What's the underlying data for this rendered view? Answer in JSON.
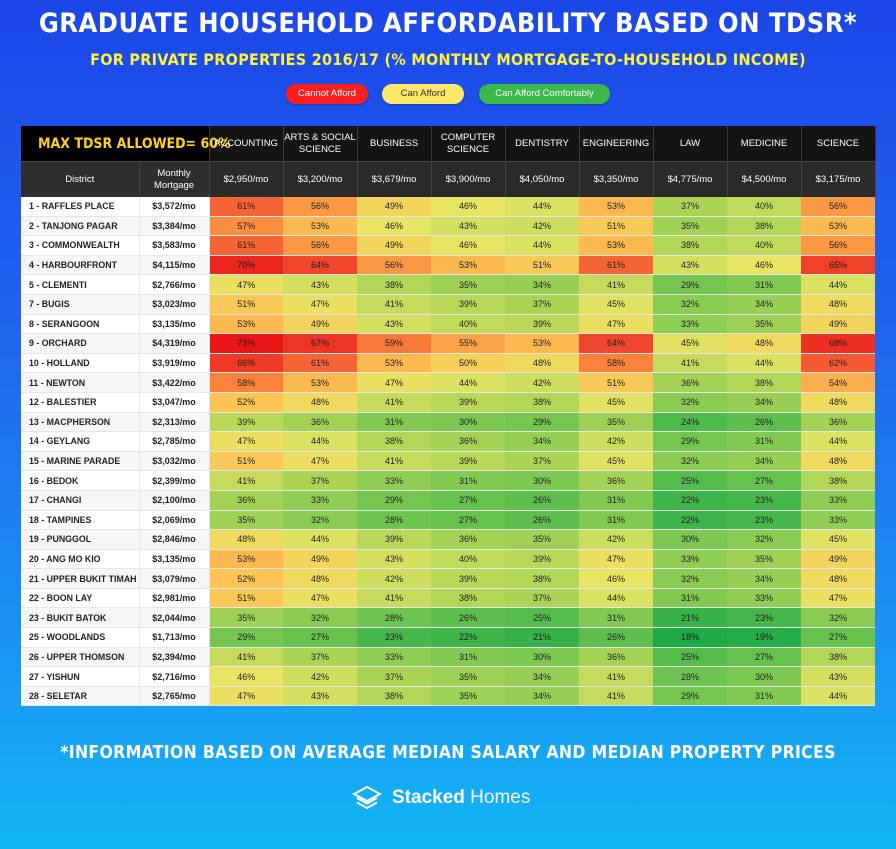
{
  "header": {
    "title": "GRADUATE HOUSEHOLD AFFORDABILITY BASED ON TDSR*",
    "subtitle": "FOR PRIVATE PROPERTIES 2016/17 (% MONTHLY MORTGAGE-TO-HOUSEHOLD INCOME)"
  },
  "legend": {
    "cannot": "Cannot Afford",
    "can": "Can Afford",
    "comfortable": "Can Afford Comfortably",
    "colors": {
      "cannot": "#ff1e1e",
      "can": "#fde86a",
      "comfortable": "#3cb84a"
    }
  },
  "table": {
    "max_tdsr": "MAX TDSR ALLOWED= 60%",
    "district_label": "District",
    "mortgage_label_line1": "Monthly",
    "mortgage_label_line2": "Mortgage"
  },
  "footer": {
    "note": "*INFORMATION BASED ON AVERAGE MEDIAN SALARY AND MEDIAN PROPERTY PRICES",
    "brand_bold": "Stacked",
    "brand_light": " Homes"
  },
  "chart_data": {
    "type": "heatmap",
    "title": "GRADUATE HOUSEHOLD AFFORDABILITY BASED ON TDSR*",
    "subtitle": "FOR PRIVATE PROPERTIES 2016/17 (% MONTHLY MORTGAGE-TO-HOUSEHOLD INCOME)",
    "columns": [
      {
        "name": [
          "ACCOUNTING"
        ],
        "income": "$2,950/mo"
      },
      {
        "name": [
          "ARTS & SOCIAL",
          "SCIENCE"
        ],
        "income": "$3,200/mo"
      },
      {
        "name": [
          "BUSINESS"
        ],
        "income": "$3,679/mo"
      },
      {
        "name": [
          "COMPUTER",
          "SCIENCE"
        ],
        "income": "$3,900/mo"
      },
      {
        "name": [
          "DENTISTRY"
        ],
        "income": "$4,050/mo"
      },
      {
        "name": [
          "ENGINEERING"
        ],
        "income": "$3,350/mo"
      },
      {
        "name": [
          "LAW"
        ],
        "income": "$4,775/mo"
      },
      {
        "name": [
          "MEDICINE"
        ],
        "income": "$4,500/mo"
      },
      {
        "name": [
          "SCIENCE"
        ],
        "income": "$3,175/mo"
      }
    ],
    "rows": [
      {
        "district": "1 - RAFFLES PLACE",
        "mortgage": "$3,572/mo",
        "values": [
          61,
          56,
          49,
          46,
          44,
          53,
          37,
          40,
          56
        ]
      },
      {
        "district": "2 - TANJONG PAGAR",
        "mortgage": "$3,384/mo",
        "values": [
          57,
          53,
          46,
          43,
          42,
          51,
          35,
          38,
          53
        ]
      },
      {
        "district": "3 - COMMONWEALTH",
        "mortgage": "$3,583/mo",
        "values": [
          61,
          56,
          49,
          46,
          44,
          53,
          38,
          40,
          56
        ]
      },
      {
        "district": "4 - HARBOURFRONT",
        "mortgage": "$4,115/mo",
        "values": [
          70,
          64,
          56,
          53,
          51,
          61,
          43,
          46,
          65
        ]
      },
      {
        "district": "5 - CLEMENTI",
        "mortgage": "$2,766/mo",
        "values": [
          47,
          43,
          38,
          35,
          34,
          41,
          29,
          31,
          44
        ]
      },
      {
        "district": "7 - BUGIS",
        "mortgage": "$3,023/mo",
        "values": [
          51,
          47,
          41,
          39,
          37,
          45,
          32,
          34,
          48
        ]
      },
      {
        "district": "8 - SERANGOON",
        "mortgage": "$3,135/mo",
        "values": [
          53,
          49,
          43,
          40,
          39,
          47,
          33,
          35,
          49
        ]
      },
      {
        "district": "9 - ORCHARD",
        "mortgage": "$4,319/mo",
        "values": [
          73,
          67,
          59,
          55,
          53,
          64,
          45,
          48,
          68
        ]
      },
      {
        "district": "10 - HOLLAND",
        "mortgage": "$3,919/mo",
        "values": [
          66,
          61,
          53,
          50,
          48,
          58,
          41,
          44,
          62
        ]
      },
      {
        "district": "11 - NEWTON",
        "mortgage": "$3,422/mo",
        "values": [
          58,
          53,
          47,
          44,
          42,
          51,
          36,
          38,
          54
        ]
      },
      {
        "district": "12 - BALESTIER",
        "mortgage": "$3,047/mo",
        "values": [
          52,
          48,
          41,
          39,
          38,
          45,
          32,
          34,
          48
        ]
      },
      {
        "district": "13 - MACPHERSON",
        "mortgage": "$2,313/mo",
        "values": [
          39,
          36,
          31,
          30,
          29,
          35,
          24,
          26,
          36
        ]
      },
      {
        "district": "14 - GEYLANG",
        "mortgage": "$2,785/mo",
        "values": [
          47,
          44,
          38,
          36,
          34,
          42,
          29,
          31,
          44
        ]
      },
      {
        "district": "15 - MARINE PARADE",
        "mortgage": "$3,032/mo",
        "values": [
          51,
          47,
          41,
          39,
          37,
          45,
          32,
          34,
          48
        ]
      },
      {
        "district": "16 - BEDOK",
        "mortgage": "$2,399/mo",
        "values": [
          41,
          37,
          33,
          31,
          30,
          36,
          25,
          27,
          38
        ]
      },
      {
        "district": "17 - CHANGI",
        "mortgage": "$2,100/mo",
        "values": [
          36,
          33,
          29,
          27,
          26,
          31,
          22,
          23,
          33
        ]
      },
      {
        "district": "18 - TAMPINES",
        "mortgage": "$2,069/mo",
        "values": [
          35,
          32,
          28,
          27,
          26,
          31,
          22,
          23,
          33
        ]
      },
      {
        "district": "19 - PUNGGOL",
        "mortgage": "$2,846/mo",
        "values": [
          48,
          44,
          39,
          36,
          35,
          42,
          30,
          32,
          45
        ]
      },
      {
        "district": "20 - ANG MO KIO",
        "mortgage": "$3,135/mo",
        "values": [
          53,
          49,
          43,
          40,
          39,
          47,
          33,
          35,
          49
        ]
      },
      {
        "district": "21 - UPPER BUKIT TIMAH",
        "mortgage": "$3,079/mo",
        "values": [
          52,
          48,
          42,
          39,
          38,
          46,
          32,
          34,
          48
        ]
      },
      {
        "district": "22 - BOON LAY",
        "mortgage": "$2,981/mo",
        "values": [
          51,
          47,
          41,
          38,
          37,
          44,
          31,
          33,
          47
        ]
      },
      {
        "district": "23 - BUKIT BATOK",
        "mortgage": "$2,044/mo",
        "values": [
          35,
          32,
          28,
          26,
          25,
          31,
          21,
          23,
          32
        ]
      },
      {
        "district": "25 - WOODLANDS",
        "mortgage": "$1,713/mo",
        "values": [
          29,
          27,
          23,
          22,
          21,
          26,
          18,
          19,
          27
        ]
      },
      {
        "district": "26 - UPPER THOMSON",
        "mortgage": "$2,394/mo",
        "values": [
          41,
          37,
          33,
          31,
          30,
          36,
          25,
          27,
          38
        ]
      },
      {
        "district": "27 - YISHUN",
        "mortgage": "$2,716/mo",
        "values": [
          46,
          42,
          37,
          35,
          34,
          41,
          28,
          30,
          43
        ]
      },
      {
        "district": "28 - SELETAR",
        "mortgage": "$2,765/mo",
        "values": [
          47,
          43,
          38,
          35,
          34,
          41,
          29,
          31,
          44
        ]
      }
    ],
    "value_suffix": "%"
  }
}
